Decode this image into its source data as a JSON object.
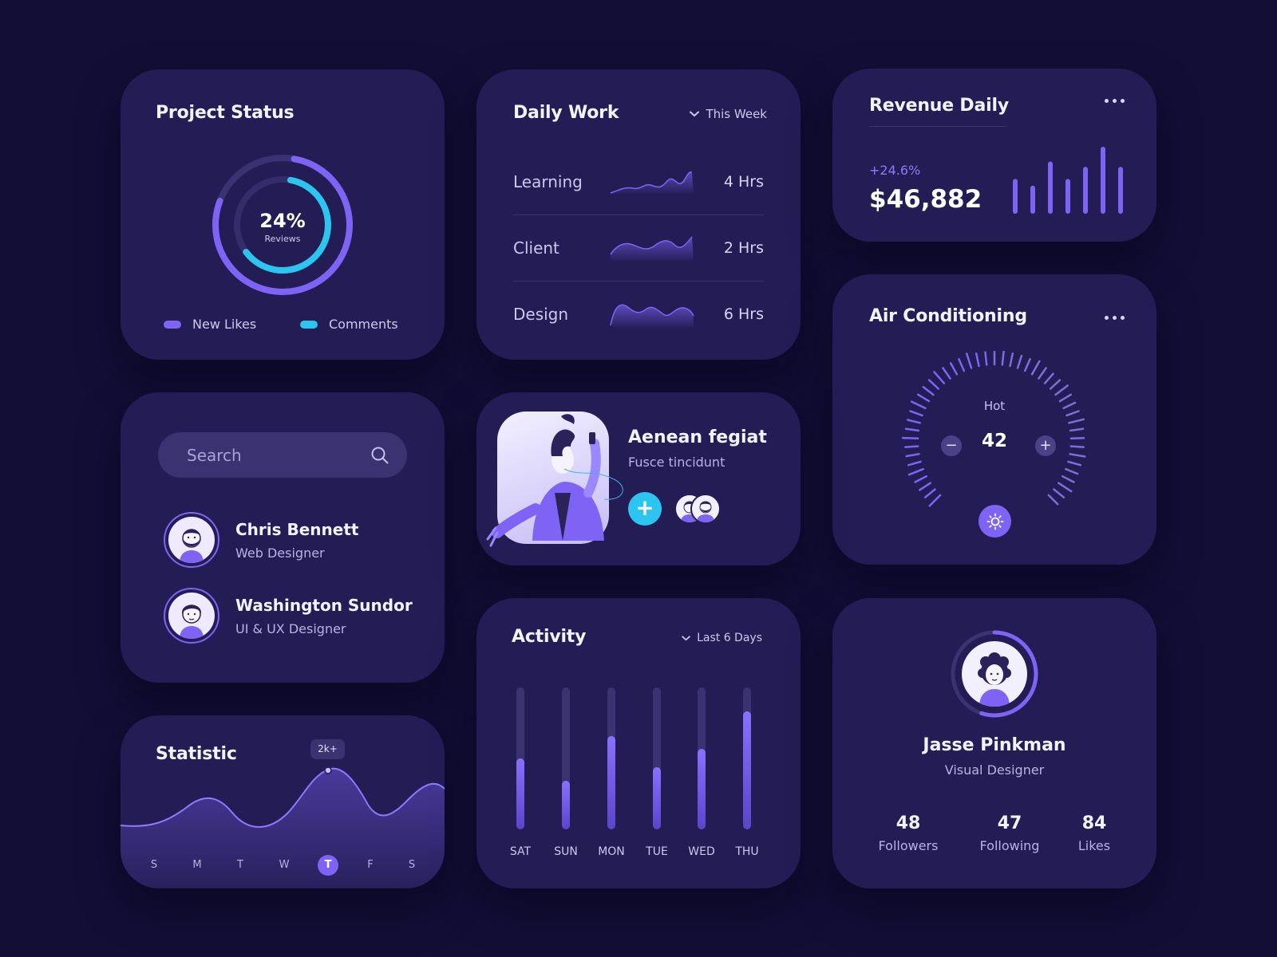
{
  "project_status": {
    "title": "Project Status",
    "center_value": "24%",
    "center_label": "Reviews",
    "outer_progress": 0.78,
    "inner_progress": 0.62,
    "legend": [
      {
        "label": "New Likes",
        "color": "#7f63f5"
      },
      {
        "label": "Comments",
        "color": "#2cc5f0"
      }
    ]
  },
  "daily_work": {
    "title": "Daily Work",
    "filter": "This Week",
    "rows": [
      {
        "label": "Learning",
        "value": "4 Hrs"
      },
      {
        "label": "Client",
        "value": "2 Hrs"
      },
      {
        "label": "Design",
        "value": "6 Hrs"
      }
    ]
  },
  "revenue": {
    "title": "Revenue Daily",
    "change": "+24.6%",
    "amount": "$46,882",
    "bar_levels": [
      0.52,
      0.42,
      0.78,
      0.52,
      0.7,
      1.0,
      0.7
    ]
  },
  "air_conditioning": {
    "title": "Air Conditioning",
    "mode": "Hot",
    "temperature": "42",
    "minus_symbol": "−",
    "plus_symbol": "+",
    "icon": "sun-icon"
  },
  "search": {
    "placeholder": "Search",
    "people": [
      {
        "name": "Chris Bennett",
        "role": "Web Designer"
      },
      {
        "name": "Washington Sundor",
        "role": "UI & UX Designer"
      }
    ]
  },
  "feature": {
    "name": "Aenean fegiat",
    "subtitle": "Fusce tincidunt",
    "add_symbol": "+"
  },
  "statistic": {
    "title": "Statistic",
    "tooltip": "2k+",
    "days": [
      "S",
      "M",
      "T",
      "W",
      "T",
      "F",
      "S"
    ],
    "active_day_index": 4
  },
  "activity": {
    "title": "Activity",
    "filter": "Last 6 Days",
    "days": [
      {
        "label": "SAT",
        "level": 0.5
      },
      {
        "label": "SUN",
        "level": 0.34
      },
      {
        "label": "MON",
        "level": 0.66
      },
      {
        "label": "TUE",
        "level": 0.44
      },
      {
        "label": "WED",
        "level": 0.57
      },
      {
        "label": "THU",
        "level": 0.83
      }
    ]
  },
  "profile": {
    "name": "Jasse Pinkman",
    "role": "Visual Designer",
    "ring_progress": 0.55,
    "stats": [
      {
        "value": "48",
        "label": "Followers"
      },
      {
        "value": "47",
        "label": "Following"
      },
      {
        "value": "84",
        "label": "Likes"
      }
    ]
  },
  "colors": {
    "background": "#120e36",
    "card": "#241d55",
    "accent_purple": "#7f63f5",
    "accent_cyan": "#2cc5f0"
  }
}
